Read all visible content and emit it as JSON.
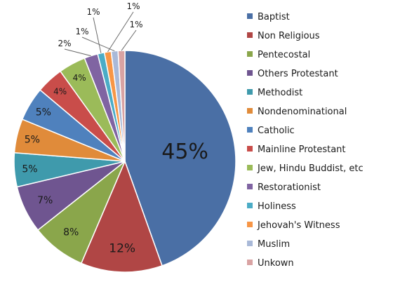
{
  "chart_data": {
    "type": "pie",
    "title": "",
    "legend_position": "right",
    "slices": [
      {
        "label": "Baptist",
        "value": 45,
        "display": "45%",
        "color": "#4a6fa5"
      },
      {
        "label": "Non Religious",
        "value": 12,
        "display": "12%",
        "color": "#b04645"
      },
      {
        "label": "Pentecostal",
        "value": 8,
        "display": "8%",
        "color": "#8aa64b"
      },
      {
        "label": "Others Protestant",
        "value": 7,
        "display": "7%",
        "color": "#6f5590"
      },
      {
        "label": "Methodist",
        "value": 5,
        "display": "5%",
        "color": "#3f9aac"
      },
      {
        "label": "Nondenominational",
        "value": 5,
        "display": "5%",
        "color": "#e08b3a"
      },
      {
        "label": "Catholic",
        "value": 5,
        "display": "5%",
        "color": "#4f81bd"
      },
      {
        "label": "Mainline Protestant",
        "value": 4,
        "display": "4%",
        "color": "#c94d4a"
      },
      {
        "label": "Jew, Hindu Buddist, etc",
        "value": 4,
        "display": "4%",
        "color": "#9bbb59"
      },
      {
        "label": "Restorationist",
        "value": 2,
        "display": "2%",
        "color": "#8064a2"
      },
      {
        "label": "Holiness",
        "value": 1,
        "display": "1%",
        "color": "#4bacc6"
      },
      {
        "label": "Jehovah's Witness",
        "value": 1,
        "display": "1%",
        "color": "#f79646"
      },
      {
        "label": "Muslim",
        "value": 1,
        "display": "1%",
        "color": "#a9b9d8"
      },
      {
        "label": "Unkown",
        "value": 1,
        "display": "1%",
        "color": "#d9a3a3"
      }
    ]
  }
}
